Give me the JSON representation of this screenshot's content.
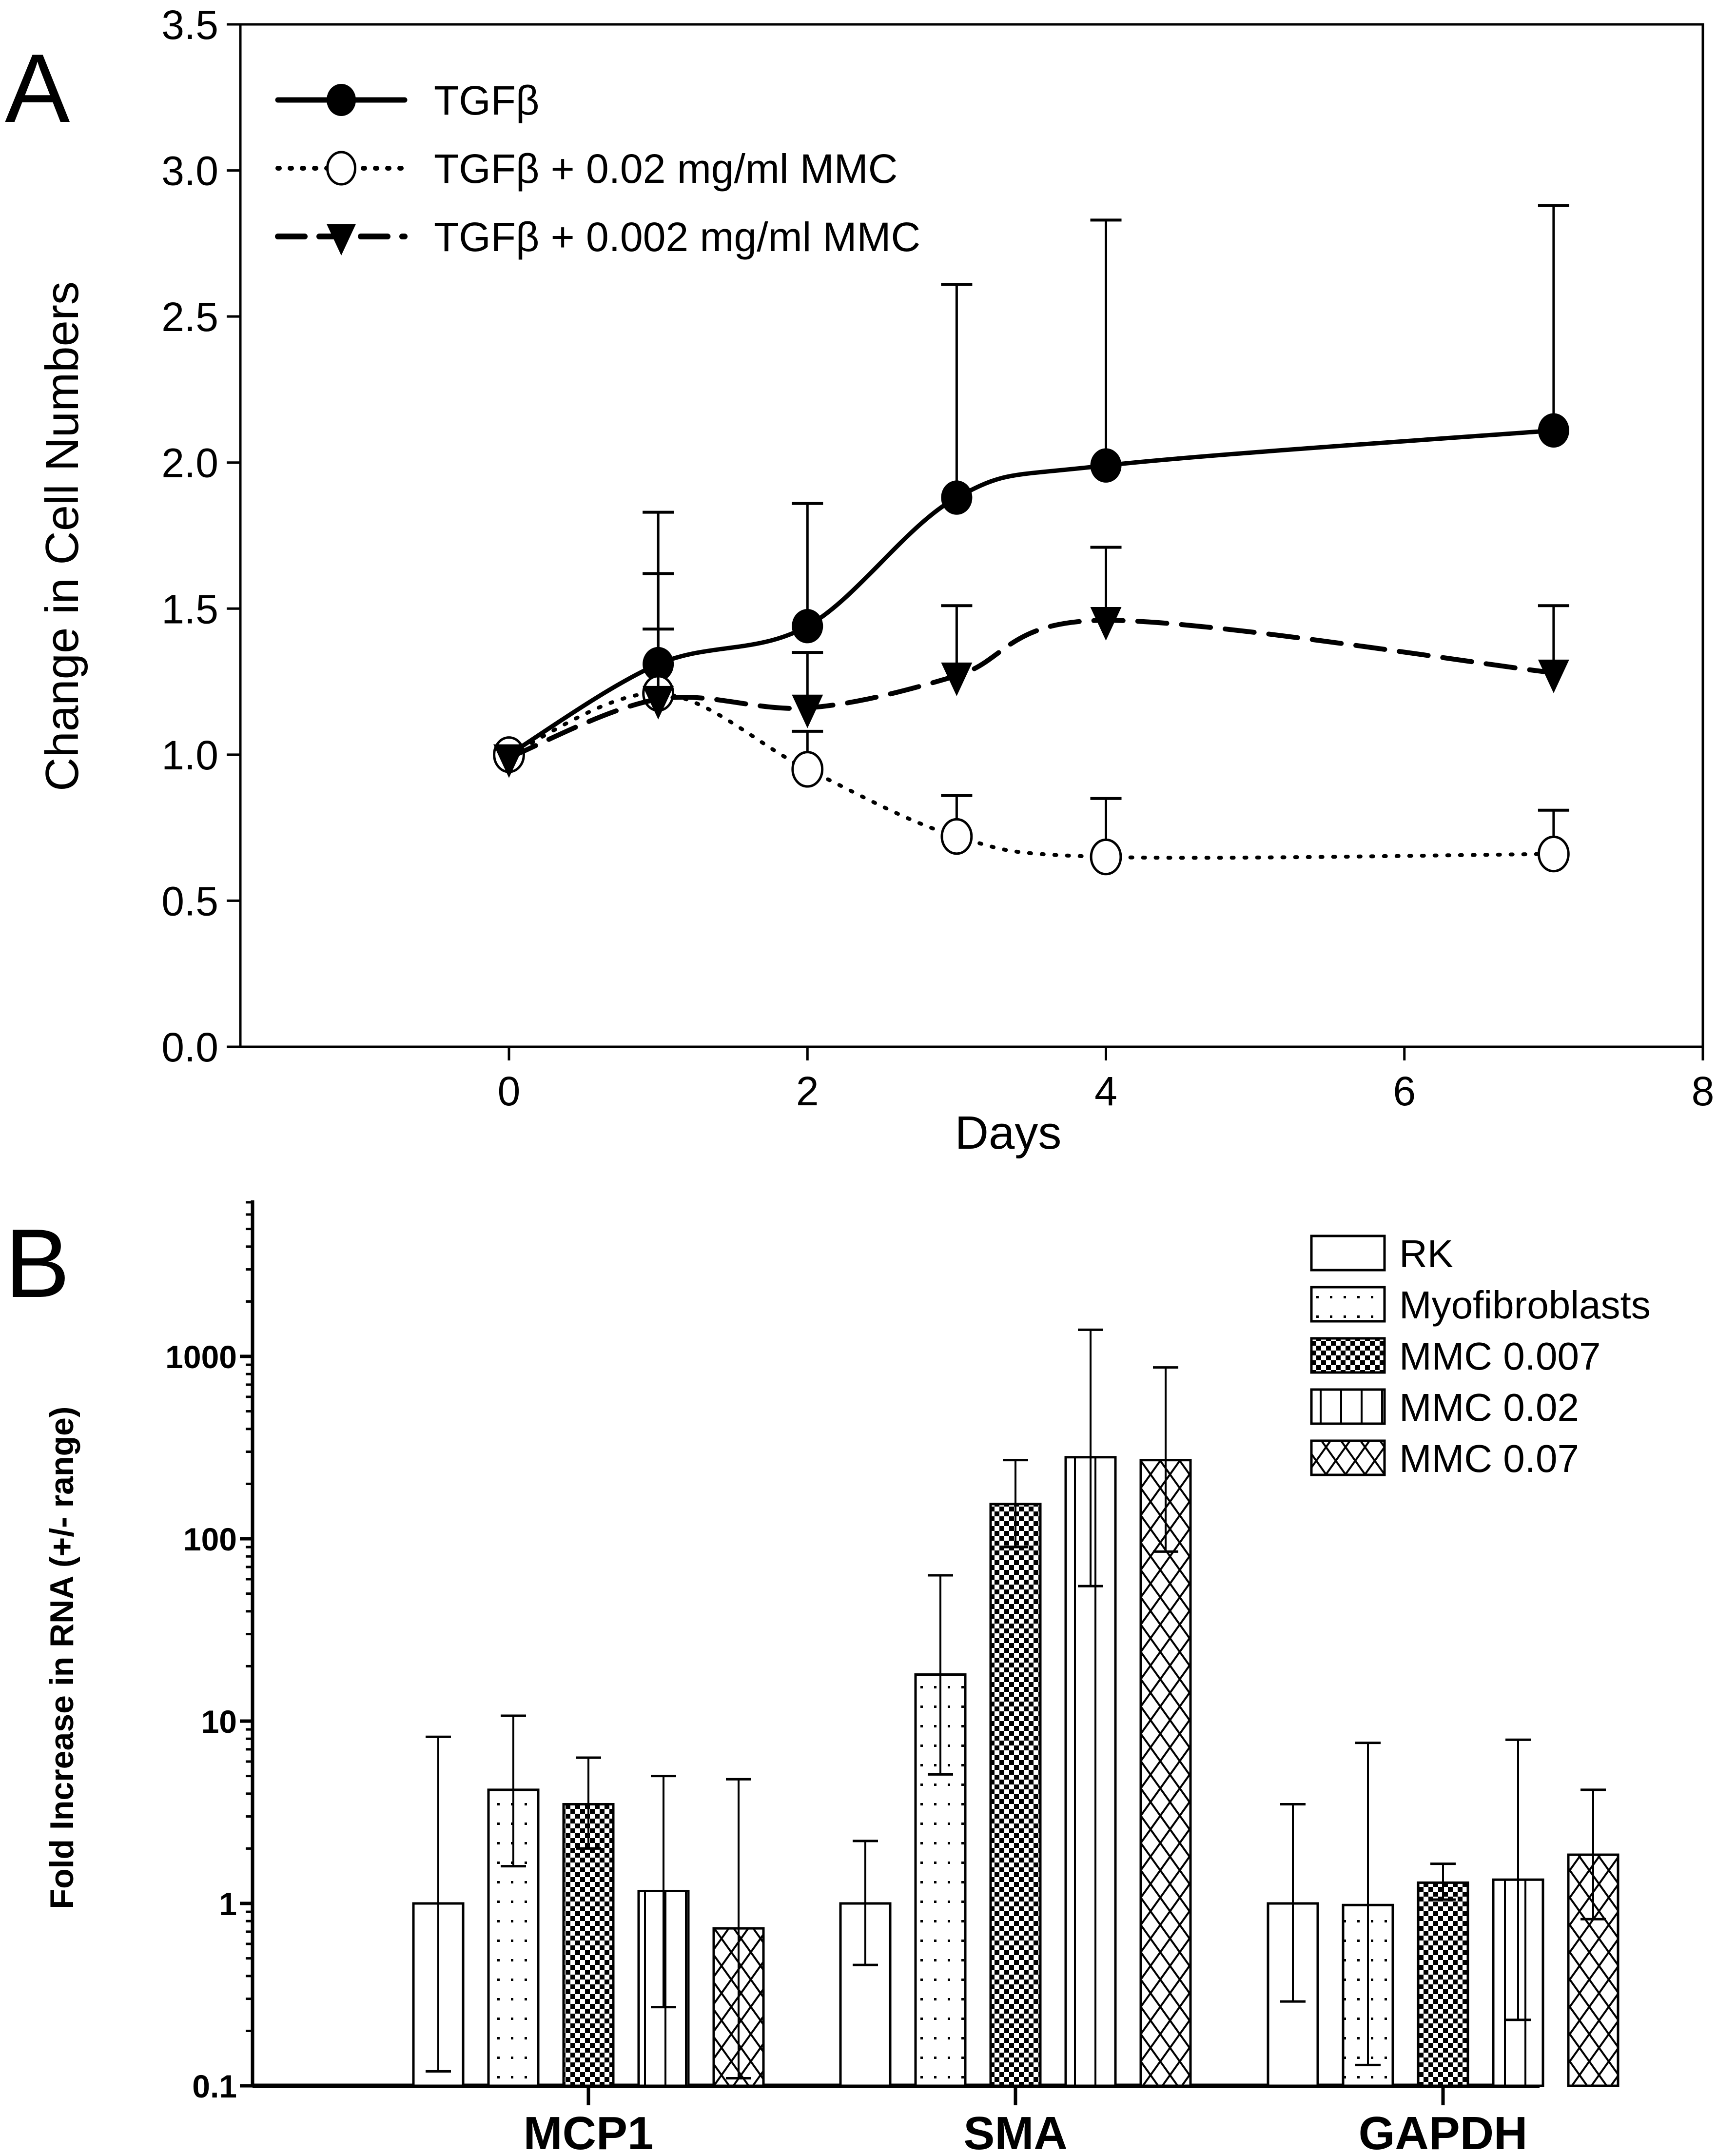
{
  "chart_data": [
    {
      "panel": "A",
      "type": "line",
      "title": "",
      "xlabel": "Days",
      "ylabel": "Change in Cell Numbers",
      "xlim": [
        -1.8,
        8
      ],
      "ylim": [
        0,
        3.5
      ],
      "xticks": [
        0,
        2,
        4,
        6,
        8
      ],
      "xtick_labels": [
        "0",
        "2",
        "4",
        "6",
        "8"
      ],
      "yticks": [
        0,
        0.5,
        1.0,
        1.5,
        2.0,
        2.5,
        3.0,
        3.5
      ],
      "ytick_labels": [
        "0.0",
        "0.5",
        "1.0",
        "1.5",
        "2.0",
        "2.5",
        "3.0",
        "3.5"
      ],
      "grid": false,
      "legend_position": "top-left",
      "x": [
        0,
        1,
        2,
        3,
        4,
        7
      ],
      "series": [
        {
          "name": "TGFβ",
          "marker": "filled-circle",
          "line": "solid",
          "values": [
            1.0,
            1.31,
            1.44,
            1.88,
            1.99,
            2.11
          ],
          "error_upper": [
            null,
            1.83,
            1.86,
            2.61,
            2.83,
            2.88
          ]
        },
        {
          "name": "TGFβ + 0.02 mg/ml MMC",
          "marker": "open-circle",
          "line": "dotted",
          "values": [
            1.0,
            1.21,
            0.95,
            0.72,
            0.65,
            0.66
          ],
          "error_upper": [
            null,
            1.62,
            1.08,
            0.86,
            0.85,
            0.81
          ]
        },
        {
          "name": "TGFβ + 0.002 mg/ml MMC",
          "marker": "filled-triangle-down",
          "line": "dashed",
          "values": [
            0.99,
            1.19,
            1.16,
            1.27,
            1.46,
            1.28
          ],
          "error_upper": [
            null,
            1.43,
            1.35,
            1.51,
            1.71,
            1.51
          ]
        }
      ]
    },
    {
      "panel": "B",
      "type": "bar",
      "title": "",
      "xlabel": "",
      "ylabel": "Fold Increase in RNA (+/- range)",
      "yscale": "log",
      "ylim": [
        0.1,
        10000
      ],
      "yticks": [
        0.1,
        1,
        10,
        100,
        1000
      ],
      "ytick_labels": [
        "0.1",
        "1",
        "10",
        "100",
        "1000"
      ],
      "grid": false,
      "legend_position": "top-right",
      "categories": [
        "MCP1",
        "SMA",
        "GAPDH"
      ],
      "series": [
        {
          "name": "RK",
          "pattern": "empty",
          "values": [
            1.0,
            1.0,
            1.0
          ],
          "err_low": [
            0.12,
            0.46,
            0.29
          ],
          "err_high": [
            8.2,
            2.2,
            3.5
          ]
        },
        {
          "name": "Myofibroblasts",
          "pattern": "dots",
          "values": [
            4.2,
            18,
            0.98
          ],
          "err_low": [
            1.6,
            5.1,
            0.13
          ],
          "err_high": [
            10.7,
            63,
            7.6
          ]
        },
        {
          "name": "MMC 0.007",
          "pattern": "checker",
          "values": [
            3.5,
            155,
            1.3
          ],
          "err_low": [
            2.0,
            90,
            1.05
          ],
          "err_high": [
            6.3,
            270,
            1.65
          ]
        },
        {
          "name": "MMC 0.02",
          "pattern": "vertical-lines",
          "values": [
            1.17,
            280,
            1.35
          ],
          "err_low": [
            0.27,
            55,
            0.23
          ],
          "err_high": [
            5.0,
            1400,
            7.9
          ]
        },
        {
          "name": "MMC 0.07",
          "pattern": "crosshatch",
          "values": [
            0.73,
            270,
            1.85
          ],
          "err_low": [
            0.11,
            85,
            0.82
          ],
          "err_high": [
            4.8,
            870,
            4.2
          ]
        }
      ]
    }
  ],
  "labels": {
    "panel_a": "A",
    "panel_b": "B"
  },
  "colors": {
    "ink": "#000000",
    "background": "#ffffff"
  }
}
